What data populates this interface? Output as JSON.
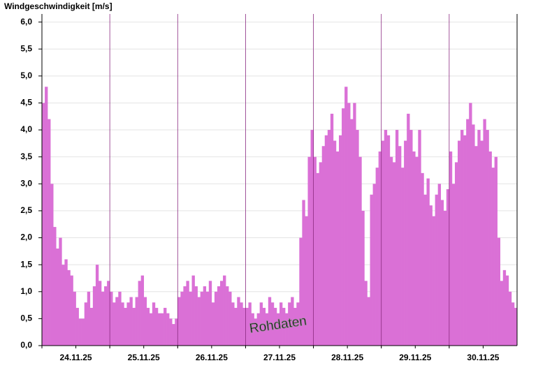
{
  "chart_data": {
    "type": "bar",
    "title": "Windgeschwindigkeit [m/s]",
    "annotation": "Rohdaten",
    "color": "#da70d6",
    "grid": true,
    "ylim": [
      0,
      6.15
    ],
    "yticks": [
      {
        "value": 0,
        "label": "0,0"
      },
      {
        "value": 0.5,
        "label": "0,5"
      },
      {
        "value": 1,
        "label": "1,0"
      },
      {
        "value": 1.5,
        "label": "1,5"
      },
      {
        "value": 2,
        "label": "2,0"
      },
      {
        "value": 2.5,
        "label": "2,5"
      },
      {
        "value": 3,
        "label": "3,0"
      },
      {
        "value": 3.5,
        "label": "3,5"
      },
      {
        "value": 4,
        "label": "4,0"
      },
      {
        "value": 4.5,
        "label": "4,5"
      },
      {
        "value": 5,
        "label": "5,0"
      },
      {
        "value": 5.5,
        "label": "5,5"
      },
      {
        "value": 6,
        "label": "6,0"
      }
    ],
    "categories": [
      null,
      null,
      null,
      null,
      null,
      null,
      null,
      null,
      null,
      null,
      null,
      null,
      "24.11.25",
      null,
      null,
      null,
      null,
      null,
      null,
      null,
      null,
      null,
      null,
      null,
      null,
      null,
      null,
      null,
      null,
      null,
      null,
      null,
      null,
      null,
      null,
      null,
      "25.11.25",
      null,
      null,
      null,
      null,
      null,
      null,
      null,
      null,
      null,
      null,
      null,
      null,
      null,
      null,
      null,
      null,
      null,
      null,
      null,
      null,
      null,
      null,
      null,
      "26.11.25",
      null,
      null,
      null,
      null,
      null,
      null,
      null,
      null,
      null,
      null,
      null,
      null,
      null,
      null,
      null,
      null,
      null,
      null,
      null,
      null,
      null,
      null,
      null,
      "27.11.25",
      null,
      null,
      null,
      null,
      null,
      null,
      null,
      null,
      null,
      null,
      null,
      null,
      null,
      null,
      null,
      null,
      null,
      null,
      null,
      null,
      null,
      null,
      null,
      "28.11.25",
      null,
      null,
      null,
      null,
      null,
      null,
      null,
      null,
      null,
      null,
      null,
      null,
      null,
      null,
      null,
      null,
      null,
      null,
      null,
      null,
      null,
      null,
      null,
      "29.11.25",
      null,
      null,
      null,
      null,
      null,
      null,
      null,
      null,
      null,
      null,
      null,
      null,
      null,
      null,
      null,
      null,
      null,
      null,
      null,
      null,
      null,
      null,
      null,
      "30.11.25",
      null,
      null,
      null,
      null,
      null,
      null,
      null,
      null,
      null,
      null,
      null
    ],
    "values": [
      4.5,
      4.8,
      4.2,
      3.0,
      2.2,
      1.8,
      2.0,
      1.5,
      1.6,
      1.4,
      1.3,
      1.0,
      0.7,
      0.5,
      0.5,
      0.8,
      1.0,
      0.7,
      1.1,
      1.5,
      1.2,
      1.0,
      1.1,
      1.2,
      1.0,
      0.8,
      0.9,
      1.0,
      0.8,
      0.7,
      0.8,
      0.9,
      0.7,
      0.9,
      1.2,
      1.3,
      0.9,
      0.7,
      0.6,
      0.8,
      0.7,
      0.6,
      0.6,
      0.7,
      0.6,
      0.5,
      0.4,
      0.5,
      0.9,
      1.0,
      1.1,
      1.2,
      1.0,
      1.3,
      1.1,
      0.9,
      1.0,
      1.1,
      1.0,
      1.2,
      0.8,
      1.0,
      1.1,
      1.2,
      1.3,
      1.1,
      1.0,
      0.8,
      0.7,
      0.9,
      0.8,
      0.7,
      0.7,
      0.8,
      0.6,
      0.5,
      0.6,
      0.8,
      0.7,
      0.6,
      0.9,
      0.8,
      0.7,
      0.6,
      0.8,
      0.7,
      0.6,
      0.8,
      0.9,
      0.7,
      0.8,
      2.0,
      2.7,
      2.4,
      3.5,
      4.0,
      3.5,
      3.2,
      3.4,
      3.7,
      3.9,
      4.0,
      4.3,
      3.8,
      3.6,
      3.9,
      4.4,
      4.8,
      4.5,
      4.2,
      4.5,
      4.0,
      3.5,
      2.5,
      1.2,
      0.9,
      2.8,
      3.0,
      3.3,
      3.6,
      3.8,
      4.0,
      3.9,
      3.5,
      3.4,
      4.0,
      3.7,
      3.3,
      3.8,
      4.3,
      4.0,
      3.6,
      3.5,
      4.0,
      3.2,
      2.8,
      3.1,
      2.6,
      2.4,
      2.8,
      3.0,
      2.7,
      2.5,
      2.9,
      3.6,
      3.0,
      3.4,
      3.8,
      4.0,
      3.9,
      4.2,
      4.5,
      4.1,
      3.7,
      4.0,
      3.8,
      4.2,
      4.0,
      3.6,
      3.3,
      3.5,
      2.0,
      1.2,
      1.4,
      1.3,
      1.0,
      0.8,
      0.7
    ]
  }
}
